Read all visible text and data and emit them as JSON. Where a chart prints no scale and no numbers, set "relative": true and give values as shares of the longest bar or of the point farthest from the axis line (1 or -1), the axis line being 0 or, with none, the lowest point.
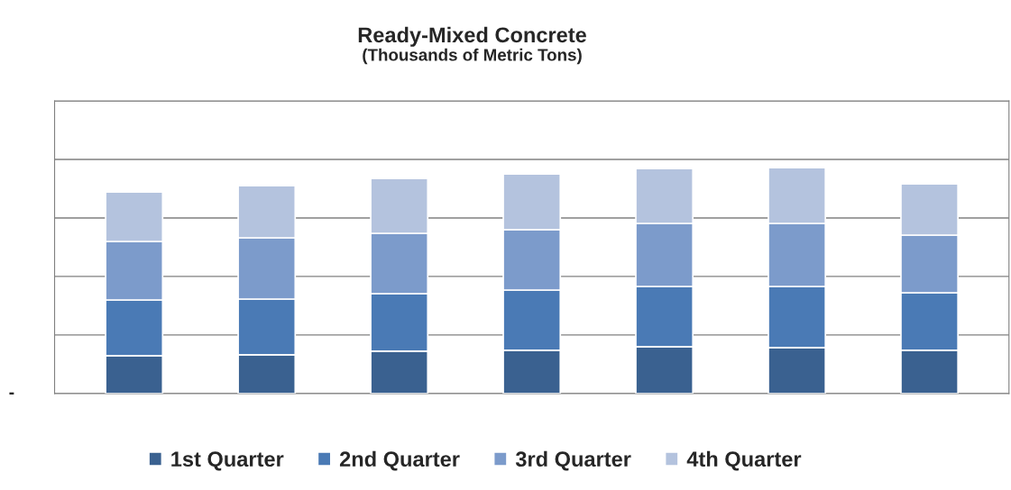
{
  "chart_data": {
    "type": "bar",
    "title": "Ready-Mixed Concrete",
    "subtitle": "(Thousands of Metric Tons)",
    "categories": [
      null,
      null,
      null,
      null,
      null,
      null,
      null
    ],
    "stacked": true,
    "relative": true,
    "grid": "y",
    "legend": "bottom",
    "annotations": [
      "-"
    ],
    "series": [
      {
        "name": "1st Quarter",
        "color": "#3a6190",
        "values": [
          0.167,
          0.171,
          0.187,
          0.191,
          0.207,
          0.203,
          0.191
        ]
      },
      {
        "name": "2nd Quarter",
        "color": "#4a7ab5",
        "values": [
          0.247,
          0.247,
          0.255,
          0.267,
          0.267,
          0.271,
          0.255
        ]
      },
      {
        "name": "3rd Quarter",
        "color": "#7c9bcb",
        "values": [
          0.259,
          0.271,
          0.267,
          0.267,
          0.279,
          0.279,
          0.255
        ]
      },
      {
        "name": "4th Quarter",
        "color": "#b4c3de",
        "values": [
          0.219,
          0.231,
          0.243,
          0.247,
          0.243,
          0.247,
          0.227
        ]
      }
    ]
  }
}
